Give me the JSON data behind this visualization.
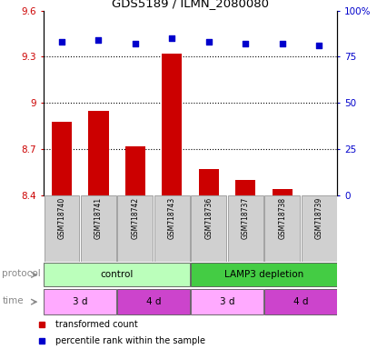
{
  "title": "GDS5189 / ILMN_2080080",
  "samples": [
    "GSM718740",
    "GSM718741",
    "GSM718742",
    "GSM718743",
    "GSM718736",
    "GSM718737",
    "GSM718738",
    "GSM718739"
  ],
  "red_values": [
    8.88,
    8.95,
    8.72,
    9.32,
    8.57,
    8.5,
    8.44,
    8.4
  ],
  "blue_values": [
    83,
    84,
    82,
    85,
    83,
    82,
    82,
    81
  ],
  "ylim_left": [
    8.4,
    9.6
  ],
  "ylim_right": [
    0,
    100
  ],
  "yticks_left": [
    8.4,
    8.7,
    9.0,
    9.3,
    9.6
  ],
  "yticks_right": [
    0,
    25,
    50,
    75,
    100
  ],
  "ytick_labels_left": [
    "8.4",
    "8.7",
    "9",
    "9.3",
    "9.6"
  ],
  "ytick_labels_right": [
    "0",
    "25",
    "50",
    "75",
    "100%"
  ],
  "hlines": [
    8.7,
    9.0,
    9.3
  ],
  "bar_color": "#cc0000",
  "dot_color": "#0000cc",
  "bar_bottom": 8.4,
  "protocol_groups": [
    {
      "label": "control",
      "start": 0,
      "end": 4,
      "color": "#bbffbb"
    },
    {
      "label": "LAMP3 depletion",
      "start": 4,
      "end": 8,
      "color": "#44cc44"
    }
  ],
  "time_groups": [
    {
      "label": "3 d",
      "start": 0,
      "end": 2,
      "color": "#ffaaff"
    },
    {
      "label": "4 d",
      "start": 2,
      "end": 4,
      "color": "#cc44cc"
    },
    {
      "label": "3 d",
      "start": 4,
      "end": 6,
      "color": "#ffaaff"
    },
    {
      "label": "4 d",
      "start": 6,
      "end": 8,
      "color": "#cc44cc"
    }
  ],
  "legend_red_label": "transformed count",
  "legend_blue_label": "percentile rank within the sample",
  "left_axis_color": "#cc0000",
  "right_axis_color": "#0000cc",
  "background_color": "#ffffff",
  "label_bg_color": "#d0d0d0"
}
